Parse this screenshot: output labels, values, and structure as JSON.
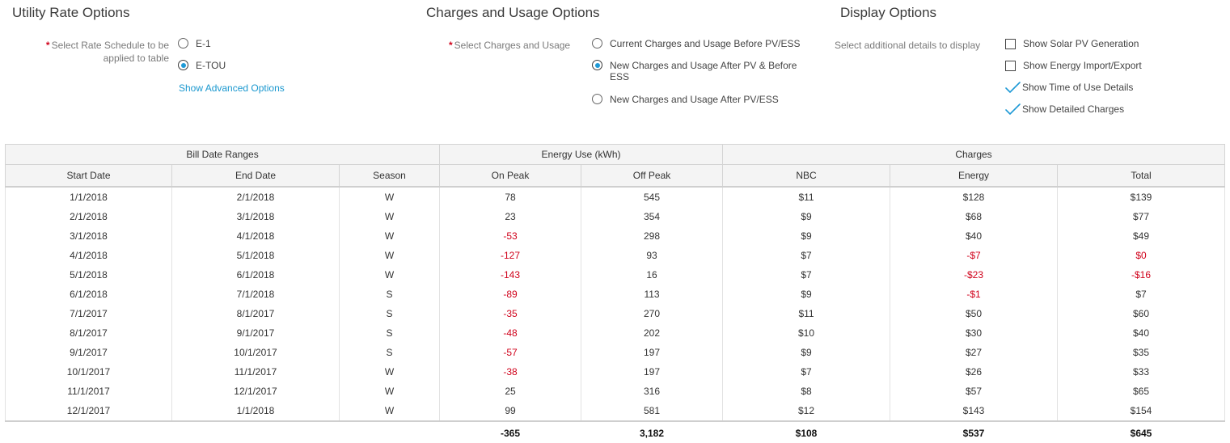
{
  "utility": {
    "title": "Utility Rate Options",
    "label_line1": "Select Rate Schedule to be",
    "label_line2": "applied to table",
    "options": [
      "E-1",
      "E-TOU"
    ],
    "selected": "E-TOU",
    "advanced_link": "Show Advanced Options"
  },
  "charges_usage": {
    "title": "Charges and Usage Options",
    "label": "Select Charges and Usage",
    "options": [
      "Current Charges and Usage Before PV/ESS",
      "New Charges and Usage After PV & Before ESS",
      "New Charges and Usage After PV/ESS"
    ],
    "selected": "New Charges and Usage After PV & Before ESS"
  },
  "display": {
    "title": "Display Options",
    "label": "Select additional details to display",
    "options": [
      {
        "label": "Show Solar PV Generation",
        "checked": false
      },
      {
        "label": "Show Energy Import/Export",
        "checked": false
      },
      {
        "label": "Show Time of Use Details",
        "checked": true
      },
      {
        "label": "Show Detailed Charges",
        "checked": true
      }
    ]
  },
  "colors": {
    "accent": "#1f9ad6",
    "link": "#1b98cf",
    "negative": "#d0021b",
    "required": "#d0021b"
  },
  "table": {
    "groups": [
      "Bill Date Ranges",
      "Energy Use (kWh)",
      "Charges"
    ],
    "columns": [
      "Start Date",
      "End Date",
      "Season",
      "On Peak",
      "Off Peak",
      "NBC",
      "Energy",
      "Total"
    ],
    "rows": [
      [
        "1/1/2018",
        "2/1/2018",
        "W",
        "78",
        "545",
        "$11",
        "$128",
        "$139"
      ],
      [
        "2/1/2018",
        "3/1/2018",
        "W",
        "23",
        "354",
        "$9",
        "$68",
        "$77"
      ],
      [
        "3/1/2018",
        "4/1/2018",
        "W",
        "-53",
        "298",
        "$9",
        "$40",
        "$49"
      ],
      [
        "4/1/2018",
        "5/1/2018",
        "W",
        "-127",
        "93",
        "$7",
        "-$7",
        "$0"
      ],
      [
        "5/1/2018",
        "6/1/2018",
        "W",
        "-143",
        "16",
        "$7",
        "-$23",
        "-$16"
      ],
      [
        "6/1/2018",
        "7/1/2018",
        "S",
        "-89",
        "113",
        "$9",
        "-$1",
        "$7"
      ],
      [
        "7/1/2017",
        "8/1/2017",
        "S",
        "-35",
        "270",
        "$11",
        "$50",
        "$60"
      ],
      [
        "8/1/2017",
        "9/1/2017",
        "S",
        "-48",
        "202",
        "$10",
        "$30",
        "$40"
      ],
      [
        "9/1/2017",
        "10/1/2017",
        "S",
        "-57",
        "197",
        "$9",
        "$27",
        "$35"
      ],
      [
        "10/1/2017",
        "11/1/2017",
        "W",
        "-38",
        "197",
        "$7",
        "$26",
        "$33"
      ],
      [
        "11/1/2017",
        "12/1/2017",
        "W",
        "25",
        "316",
        "$8",
        "$57",
        "$65"
      ],
      [
        "12/1/2017",
        "1/1/2018",
        "W",
        "99",
        "581",
        "$12",
        "$143",
        "$154"
      ]
    ],
    "red_cells": [
      [
        false,
        false,
        false,
        false,
        false,
        false,
        false,
        false
      ],
      [
        false,
        false,
        false,
        false,
        false,
        false,
        false,
        false
      ],
      [
        false,
        false,
        false,
        true,
        false,
        false,
        false,
        false
      ],
      [
        false,
        false,
        false,
        true,
        false,
        false,
        true,
        true
      ],
      [
        false,
        false,
        false,
        true,
        false,
        false,
        true,
        true
      ],
      [
        false,
        false,
        false,
        true,
        false,
        false,
        true,
        false
      ],
      [
        false,
        false,
        false,
        true,
        false,
        false,
        false,
        false
      ],
      [
        false,
        false,
        false,
        true,
        false,
        false,
        false,
        false
      ],
      [
        false,
        false,
        false,
        true,
        false,
        false,
        false,
        false
      ],
      [
        false,
        false,
        false,
        true,
        false,
        false,
        false,
        false
      ],
      [
        false,
        false,
        false,
        false,
        false,
        false,
        false,
        false
      ],
      [
        false,
        false,
        false,
        false,
        false,
        false,
        false,
        false
      ]
    ],
    "totals": [
      "",
      "",
      "",
      "-365",
      "3,182",
      "$108",
      "$537",
      "$645"
    ],
    "totals_red": [
      false,
      false,
      false,
      true,
      false,
      false,
      false,
      false
    ]
  }
}
